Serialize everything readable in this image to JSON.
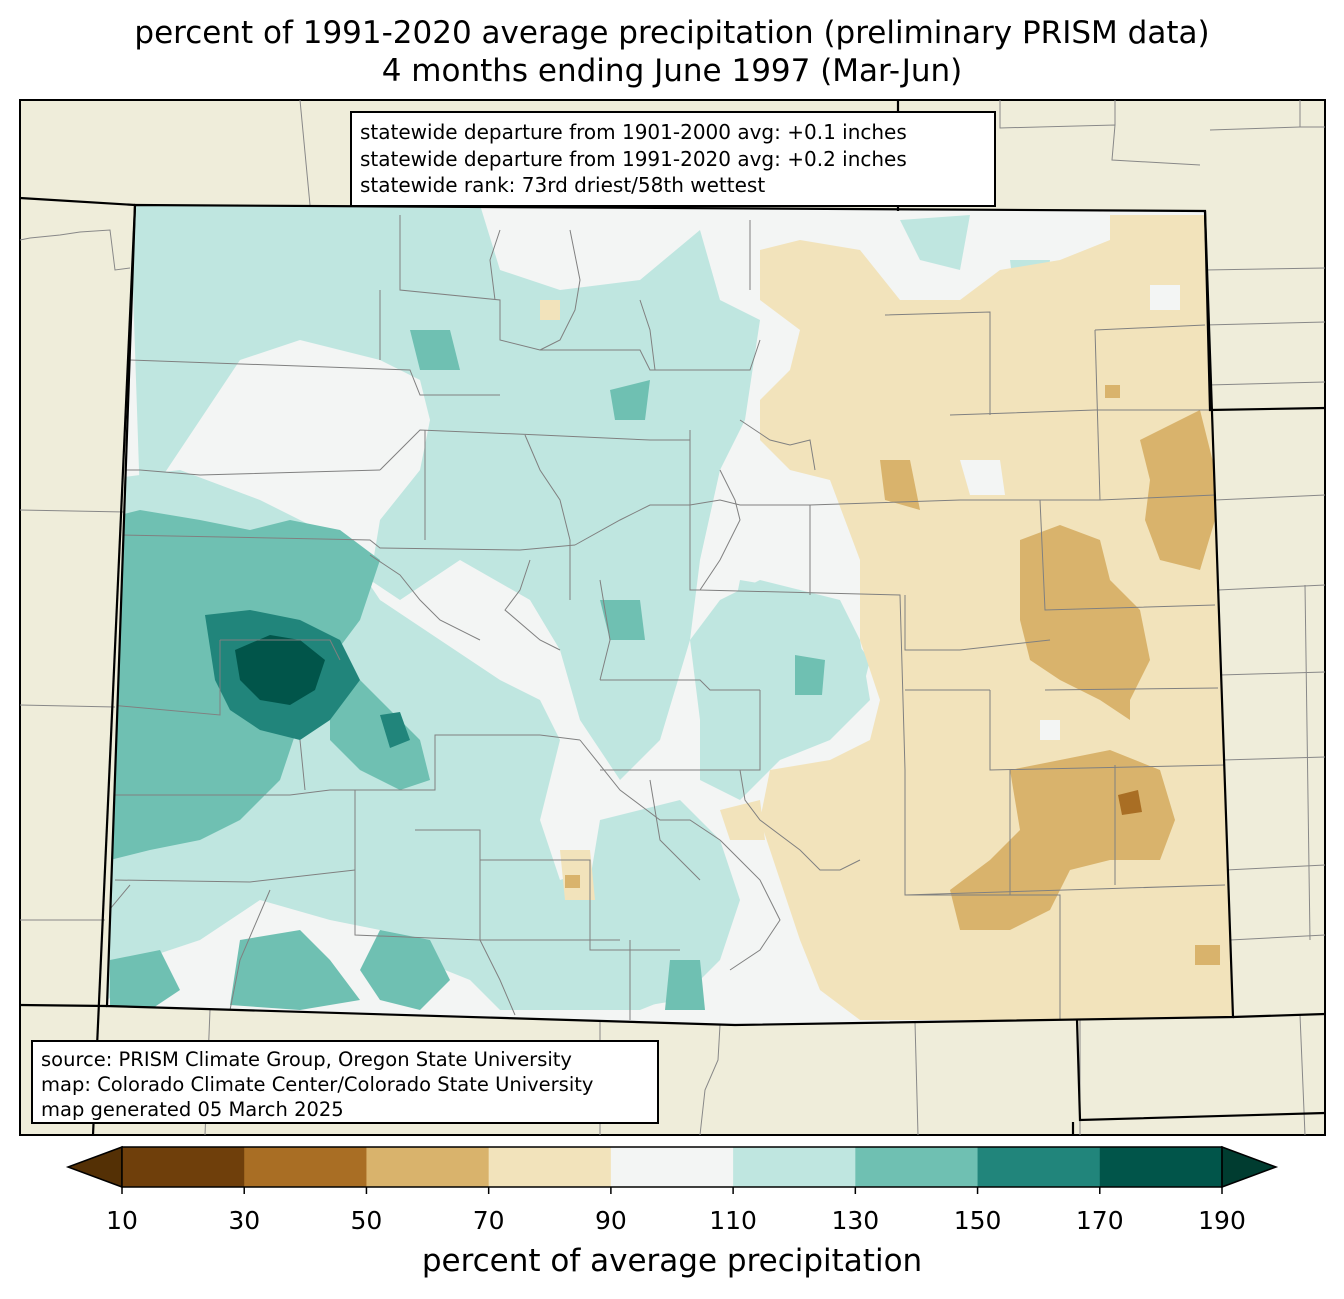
{
  "title": {
    "line1": "percent of 1991-2020 average precipitation (preliminary PRISM data)",
    "line2": "4 months ending June 1997 (Mar-Jun)"
  },
  "stats": {
    "line1": "statewide departure from 1901-2000 avg: +0.1 inches",
    "line2": "statewide departure from 1991-2020 avg: +0.2 inches",
    "line3": "statewide rank: 73rd driest/58th wettest"
  },
  "source": {
    "line1": "source: PRISM Climate Group, Oregon State University",
    "line2": "map: Colorado Climate Center/Colorado State University",
    "line3": "map generated 05 March 2025"
  },
  "colorbar": {
    "label": "percent of average precipitation",
    "ticks": [
      "10",
      "30",
      "50",
      "70",
      "90",
      "110",
      "130",
      "150",
      "170",
      "190"
    ],
    "bins": [
      {
        "range": "10-30",
        "color": "#6f3f0b"
      },
      {
        "range": "30-50",
        "color": "#a96e24"
      },
      {
        "range": "50-70",
        "color": "#d9b36c"
      },
      {
        "range": "70-90",
        "color": "#f2e3bb"
      },
      {
        "range": "90-110",
        "color": "#f3f5f4"
      },
      {
        "range": "110-130",
        "color": "#bfe6e0"
      },
      {
        "range": "130-150",
        "color": "#6fc0b2"
      },
      {
        "range": "150-170",
        "color": "#21857b"
      },
      {
        "range": "170-190",
        "color": "#01554a"
      }
    ],
    "under_color": "#543005",
    "over_color": "#003c30"
  },
  "colors": {
    "background_land": "#efedda",
    "state_border": "#000000",
    "county_border": "#808080"
  }
}
